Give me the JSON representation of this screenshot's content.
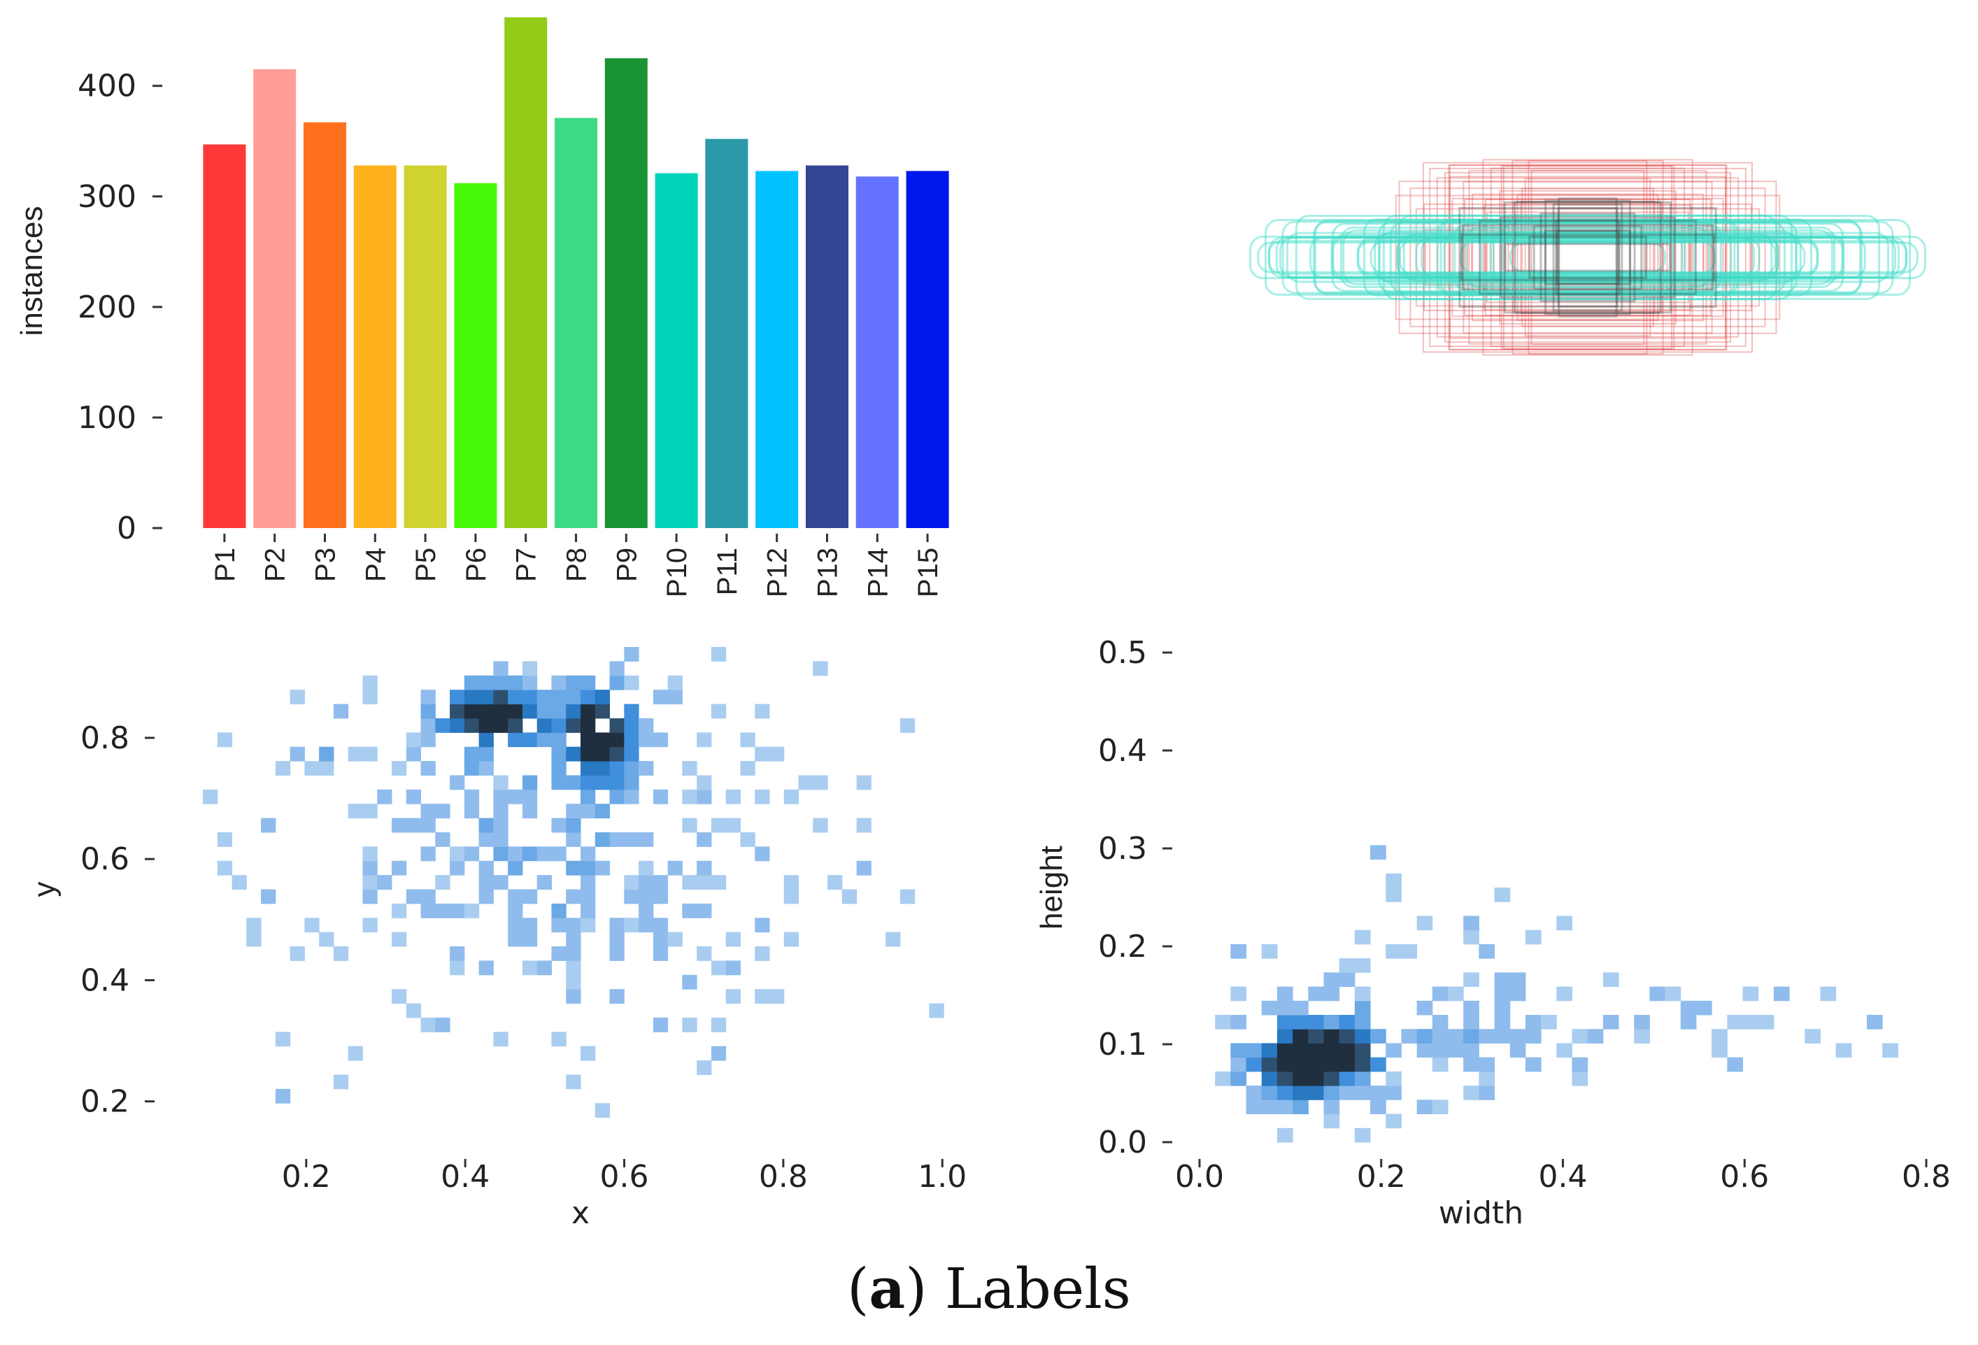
{
  "caption": {
    "letter": "a",
    "text": "Labels"
  },
  "chart_data": [
    {
      "type": "bar",
      "ylabel": "instances",
      "xlabel": "",
      "ylim": [
        0,
        465
      ],
      "yticks": [
        "0",
        "100",
        "200",
        "300",
        "400"
      ],
      "categories": [
        "P1",
        "P2",
        "P3",
        "P4",
        "P5",
        "P6",
        "P7",
        "P8",
        "P9",
        "P10",
        "P11",
        "P12",
        "P13",
        "P14",
        "P15"
      ],
      "values": [
        347,
        415,
        367,
        328,
        328,
        312,
        462,
        371,
        425,
        321,
        352,
        323,
        328,
        318,
        323
      ],
      "colors": [
        "#ff3838",
        "#ff9d97",
        "#ff701f",
        "#ffb21d",
        "#cfd231",
        "#48f90a",
        "#92cc17",
        "#3ddb86",
        "#1a9334",
        "#00d4bb",
        "#2c99a8",
        "#00c2ff",
        "#344593",
        "#6473ff",
        "#0018ec"
      ]
    },
    {
      "type": "box_overlay",
      "title": "",
      "colors": [
        "#3ddbc8",
        "#e04848",
        "#444444"
      ]
    },
    {
      "type": "heatmap",
      "xlabel": "x",
      "ylabel": "y",
      "xlim": [
        0.07,
        1.02
      ],
      "ylim": [
        0.15,
        0.95
      ],
      "xticks": [
        "0.2",
        "0.4",
        "0.6",
        "0.8",
        "1.0"
      ],
      "yticks": [
        "0.2",
        "0.4",
        "0.6",
        "0.8"
      ],
      "clusters": [
        {
          "cx": 0.43,
          "cy": 0.84,
          "sx": 0.05,
          "sy": 0.04,
          "w": 1.0
        },
        {
          "cx": 0.57,
          "cy": 0.81,
          "sx": 0.035,
          "sy": 0.06,
          "w": 1.0
        },
        {
          "cx": 0.21,
          "cy": 0.78,
          "sx": 0.02,
          "sy": 0.015,
          "w": 0.6
        },
        {
          "cx": 0.5,
          "cy": 0.62,
          "sx": 0.2,
          "sy": 0.2,
          "w": 0.45
        }
      ]
    },
    {
      "type": "heatmap",
      "xlabel": "width",
      "ylabel": "height",
      "xlim": [
        0.0,
        0.82
      ],
      "ylim": [
        0.0,
        0.52
      ],
      "xticks": [
        "0.0",
        "0.2",
        "0.4",
        "0.6",
        "0.8"
      ],
      "yticks": [
        "0.0",
        "0.1",
        "0.2",
        "0.3",
        "0.4",
        "0.5"
      ],
      "clusters": [
        {
          "cx": 0.1,
          "cy": 0.08,
          "sx": 0.04,
          "sy": 0.035,
          "w": 1.0
        },
        {
          "cx": 0.16,
          "cy": 0.09,
          "sx": 0.03,
          "sy": 0.02,
          "w": 0.8
        },
        {
          "cx": 0.25,
          "cy": 0.12,
          "sx": 0.12,
          "sy": 0.07,
          "w": 0.35
        },
        {
          "cx": 0.55,
          "cy": 0.11,
          "sx": 0.15,
          "sy": 0.025,
          "w": 0.25
        }
      ]
    }
  ]
}
